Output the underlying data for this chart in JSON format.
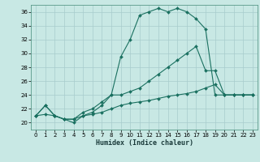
{
  "xlabel": "Humidex (Indice chaleur)",
  "bg_color": "#c8e8e4",
  "grid_color": "#a8cccc",
  "line_color": "#1a7060",
  "xlim": [
    -0.5,
    23.5
  ],
  "ylim": [
    19.0,
    37.0
  ],
  "xticks": [
    0,
    1,
    2,
    3,
    4,
    5,
    6,
    7,
    8,
    9,
    10,
    11,
    12,
    13,
    14,
    15,
    16,
    17,
    18,
    19,
    20,
    21,
    22,
    23
  ],
  "yticks": [
    20,
    22,
    24,
    26,
    28,
    30,
    32,
    34,
    36
  ],
  "curve1_x": [
    0,
    1,
    2,
    3,
    4,
    5,
    6,
    7,
    8,
    9,
    10,
    11,
    12,
    13,
    14,
    15,
    16,
    17,
    18,
    19,
    20,
    21,
    22,
    23
  ],
  "curve1_y": [
    21.0,
    22.5,
    21.0,
    20.5,
    20.5,
    21.5,
    22.0,
    23.0,
    24.0,
    29.5,
    32.0,
    35.5,
    36.0,
    36.5,
    36.0,
    36.5,
    36.0,
    35.0,
    33.5,
    24.0,
    24.0,
    24.0,
    24.0,
    24.0
  ],
  "curve2_x": [
    0,
    1,
    2,
    3,
    4,
    5,
    6,
    7,
    8,
    9,
    10,
    11,
    12,
    13,
    14,
    15,
    16,
    17,
    18,
    19,
    20,
    21,
    22,
    23
  ],
  "curve2_y": [
    21.0,
    22.5,
    21.0,
    20.5,
    20.0,
    21.0,
    21.5,
    22.5,
    24.0,
    24.0,
    24.5,
    25.0,
    26.0,
    27.0,
    28.0,
    29.0,
    30.0,
    31.0,
    27.5,
    27.5,
    24.0,
    24.0,
    24.0,
    24.0
  ],
  "curve3_x": [
    0,
    1,
    2,
    3,
    4,
    5,
    6,
    7,
    8,
    9,
    10,
    11,
    12,
    13,
    14,
    15,
    16,
    17,
    18,
    19,
    20,
    21,
    22,
    23
  ],
  "curve3_y": [
    21.0,
    21.2,
    21.0,
    20.5,
    20.5,
    21.0,
    21.2,
    21.5,
    22.0,
    22.5,
    22.8,
    23.0,
    23.2,
    23.5,
    23.8,
    24.0,
    24.2,
    24.5,
    25.0,
    25.5,
    24.0,
    24.0,
    24.0,
    24.0
  ]
}
